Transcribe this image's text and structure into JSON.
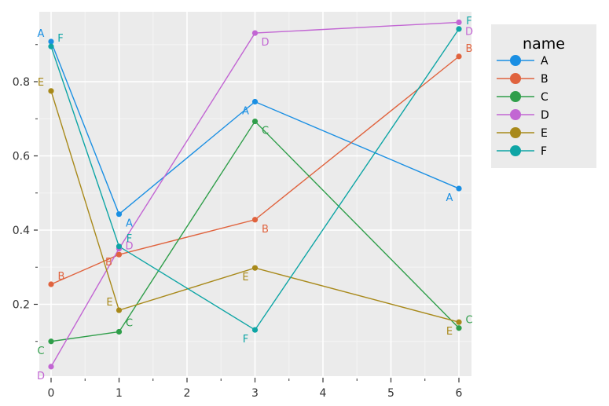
{
  "chart_data": {
    "type": "line",
    "title": "",
    "xlabel": "",
    "ylabel": "",
    "x": [
      0,
      1,
      3,
      6
    ],
    "xlim": [
      -0.15,
      6.2
    ],
    "ylim": [
      0.01,
      0.985
    ],
    "x_ticks": [
      0,
      1,
      2,
      3,
      4,
      5,
      6
    ],
    "x_tick_labels": [
      "0",
      "1",
      "2",
      "3",
      "4",
      "5",
      "6"
    ],
    "y_ticks": [
      0.2,
      0.4,
      0.6,
      0.8
    ],
    "y_tick_labels": [
      "0.2",
      "0.4",
      "0.6",
      "0.8"
    ],
    "grid": true,
    "legend_position": "right",
    "legend_title": "name",
    "point_labels": true,
    "series": [
      {
        "name": "A",
        "color": "#1a8fe3",
        "values": [
          0.908,
          0.443,
          0.746,
          0.512
        ]
      },
      {
        "name": "B",
        "color": "#e0633e",
        "values": [
          0.254,
          0.334,
          0.428,
          0.868
        ]
      },
      {
        "name": "C",
        "color": "#2f9e4a",
        "values": [
          0.1,
          0.126,
          0.693,
          0.136
        ]
      },
      {
        "name": "D",
        "color": "#c266d3",
        "values": [
          0.032,
          0.35,
          0.931,
          0.96
        ]
      },
      {
        "name": "E",
        "color": "#a8891a",
        "values": [
          0.775,
          0.184,
          0.298,
          0.152
        ]
      },
      {
        "name": "F",
        "color": "#0ea5a5",
        "values": [
          0.895,
          0.356,
          0.131,
          0.942
        ]
      }
    ]
  },
  "legend": {
    "title": "name",
    "items": [
      "A",
      "B",
      "C",
      "D",
      "E",
      "F"
    ]
  }
}
